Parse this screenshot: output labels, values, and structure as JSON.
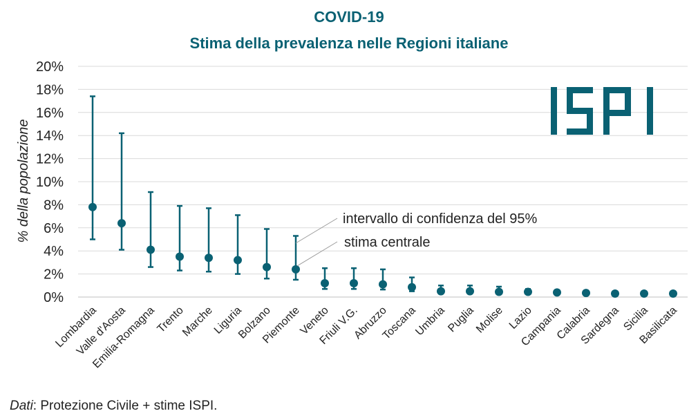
{
  "chart_data": {
    "type": "scatter",
    "title": "COVID-19",
    "subtitle": "Stima della prevalenza nelle Regioni italiane",
    "ylabel": "% della popolazione",
    "xlabel": "",
    "ylim": [
      0,
      20
    ],
    "yticks": [
      0,
      2,
      4,
      6,
      8,
      10,
      12,
      14,
      16,
      18,
      20
    ],
    "ytick_suffix": "%",
    "grid": true,
    "color": "#0a6173",
    "categories": [
      "Lombardia",
      "Valle d'Aosta",
      "Emilia-Romagna",
      "Trento",
      "Marche",
      "Liguria",
      "Bolzano",
      "Piemonte",
      "Veneto",
      "Friuli V.G.",
      "Abruzzo",
      "Toscana",
      "Umbria",
      "Puglia",
      "Molise",
      "Lazio",
      "Campania",
      "Calabria",
      "Sardegna",
      "Sicilia",
      "Basilicata"
    ],
    "values": [
      7.8,
      6.4,
      4.1,
      3.5,
      3.4,
      3.2,
      2.6,
      2.4,
      1.2,
      1.2,
      1.1,
      0.85,
      0.5,
      0.5,
      0.45,
      0.45,
      0.4,
      0.35,
      0.3,
      0.3,
      0.3
    ],
    "lower": [
      5.0,
      4.1,
      2.6,
      2.3,
      2.2,
      2.0,
      1.6,
      1.5,
      0.7,
      0.7,
      0.65,
      0.5,
      0.3,
      0.3,
      0.25,
      0.3,
      0.25,
      0.2,
      0.2,
      0.2,
      0.2
    ],
    "upper": [
      17.4,
      14.2,
      9.1,
      7.9,
      7.7,
      7.1,
      5.9,
      5.3,
      2.5,
      2.5,
      2.4,
      1.7,
      1.0,
      1.0,
      0.9,
      0.7,
      0.6,
      0.55,
      0.45,
      0.45,
      0.45
    ],
    "annotations": {
      "ci_label": "intervallo di confidenza del 95%",
      "central_label": "stima centrale"
    }
  },
  "logo": {
    "text": "ISPI",
    "color": "#0a6173"
  },
  "source": {
    "prefix": "Dati",
    "text": ": Protezione Civile + stime ISPI."
  }
}
